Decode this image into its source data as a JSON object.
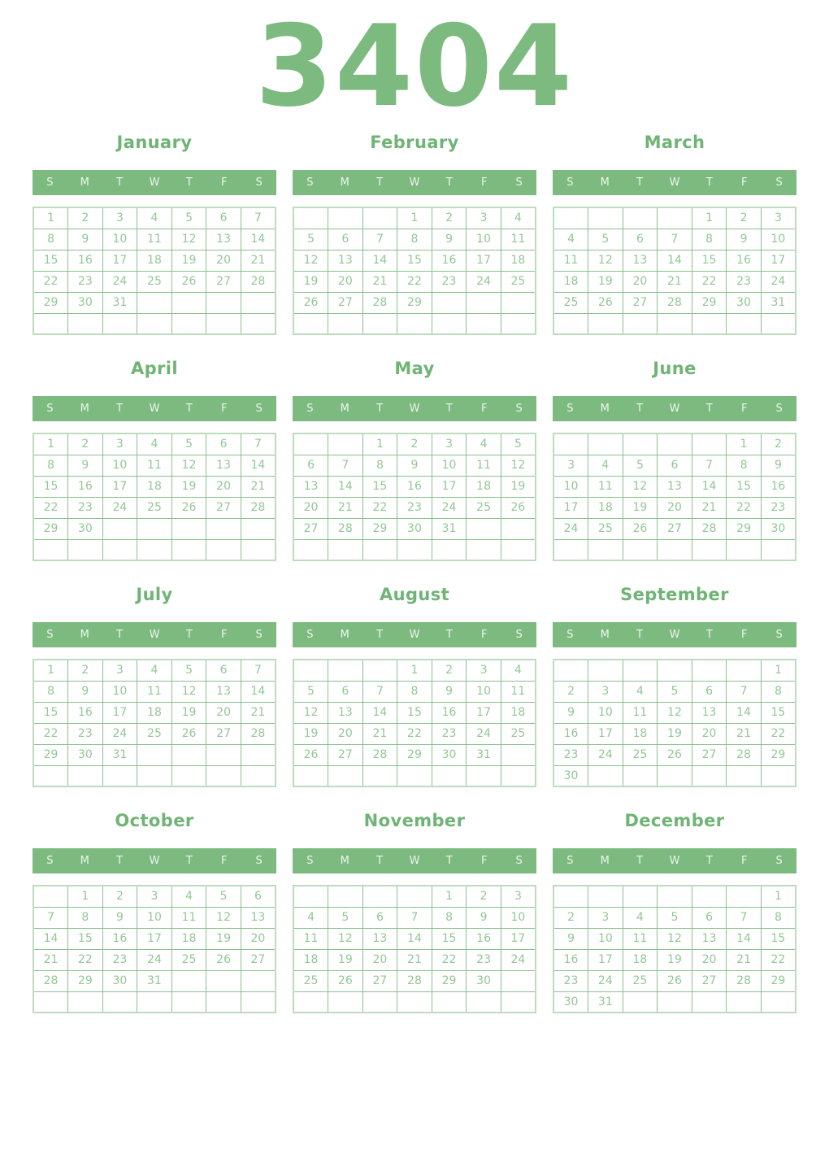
{
  "year": "3404",
  "weekdays": [
    "S",
    "M",
    "T",
    "W",
    "T",
    "F",
    "S"
  ],
  "colors": {
    "accent_green": "#7cba80",
    "title_green": "#6fb475",
    "day_text_green": "#93c795",
    "grid_line_green": "#8ac08d",
    "grid_outline_green": "#bcdcbd",
    "weekday_text": "#ecf6ec",
    "background": "#ffffff"
  },
  "months": [
    {
      "name": "January",
      "weeks": [
        [
          "1",
          "2",
          "3",
          "4",
          "5",
          "6",
          "7"
        ],
        [
          "8",
          "9",
          "10",
          "11",
          "12",
          "13",
          "14"
        ],
        [
          "15",
          "16",
          "17",
          "18",
          "19",
          "20",
          "21"
        ],
        [
          "22",
          "23",
          "24",
          "25",
          "26",
          "27",
          "28"
        ],
        [
          "29",
          "30",
          "31",
          "",
          "",
          "",
          ""
        ],
        [
          "",
          "",
          "",
          "",
          "",
          "",
          ""
        ]
      ]
    },
    {
      "name": "February",
      "weeks": [
        [
          "",
          "",
          "",
          "1",
          "2",
          "3",
          "4"
        ],
        [
          "5",
          "6",
          "7",
          "8",
          "9",
          "10",
          "11"
        ],
        [
          "12",
          "13",
          "14",
          "15",
          "16",
          "17",
          "18"
        ],
        [
          "19",
          "20",
          "21",
          "22",
          "23",
          "24",
          "25"
        ],
        [
          "26",
          "27",
          "28",
          "29",
          "",
          "",
          ""
        ],
        [
          "",
          "",
          "",
          "",
          "",
          "",
          ""
        ]
      ]
    },
    {
      "name": "March",
      "weeks": [
        [
          "",
          "",
          "",
          "",
          "1",
          "2",
          "3"
        ],
        [
          "4",
          "5",
          "6",
          "7",
          "8",
          "9",
          "10"
        ],
        [
          "11",
          "12",
          "13",
          "14",
          "15",
          "16",
          "17"
        ],
        [
          "18",
          "19",
          "20",
          "21",
          "22",
          "23",
          "24"
        ],
        [
          "25",
          "26",
          "27",
          "28",
          "29",
          "30",
          "31"
        ],
        [
          "",
          "",
          "",
          "",
          "",
          "",
          ""
        ]
      ]
    },
    {
      "name": "April",
      "weeks": [
        [
          "1",
          "2",
          "3",
          "4",
          "5",
          "6",
          "7"
        ],
        [
          "8",
          "9",
          "10",
          "11",
          "12",
          "13",
          "14"
        ],
        [
          "15",
          "16",
          "17",
          "18",
          "19",
          "20",
          "21"
        ],
        [
          "22",
          "23",
          "24",
          "25",
          "26",
          "27",
          "28"
        ],
        [
          "29",
          "30",
          "",
          "",
          "",
          "",
          ""
        ],
        [
          "",
          "",
          "",
          "",
          "",
          "",
          ""
        ]
      ]
    },
    {
      "name": "May",
      "weeks": [
        [
          "",
          "",
          "1",
          "2",
          "3",
          "4",
          "5"
        ],
        [
          "6",
          "7",
          "8",
          "9",
          "10",
          "11",
          "12"
        ],
        [
          "13",
          "14",
          "15",
          "16",
          "17",
          "18",
          "19"
        ],
        [
          "20",
          "21",
          "22",
          "23",
          "24",
          "25",
          "26"
        ],
        [
          "27",
          "28",
          "29",
          "30",
          "31",
          "",
          ""
        ],
        [
          "",
          "",
          "",
          "",
          "",
          "",
          ""
        ]
      ]
    },
    {
      "name": "June",
      "weeks": [
        [
          "",
          "",
          "",
          "",
          "",
          "1",
          "2"
        ],
        [
          "3",
          "4",
          "5",
          "6",
          "7",
          "8",
          "9"
        ],
        [
          "10",
          "11",
          "12",
          "13",
          "14",
          "15",
          "16"
        ],
        [
          "17",
          "18",
          "19",
          "20",
          "21",
          "22",
          "23"
        ],
        [
          "24",
          "25",
          "26",
          "27",
          "28",
          "29",
          "30"
        ],
        [
          "",
          "",
          "",
          "",
          "",
          "",
          ""
        ]
      ]
    },
    {
      "name": "July",
      "weeks": [
        [
          "1",
          "2",
          "3",
          "4",
          "5",
          "6",
          "7"
        ],
        [
          "8",
          "9",
          "10",
          "11",
          "12",
          "13",
          "14"
        ],
        [
          "15",
          "16",
          "17",
          "18",
          "19",
          "20",
          "21"
        ],
        [
          "22",
          "23",
          "24",
          "25",
          "26",
          "27",
          "28"
        ],
        [
          "29",
          "30",
          "31",
          "",
          "",
          "",
          ""
        ],
        [
          "",
          "",
          "",
          "",
          "",
          "",
          ""
        ]
      ]
    },
    {
      "name": "August",
      "weeks": [
        [
          "",
          "",
          "",
          "1",
          "2",
          "3",
          "4"
        ],
        [
          "5",
          "6",
          "7",
          "8",
          "9",
          "10",
          "11"
        ],
        [
          "12",
          "13",
          "14",
          "15",
          "16",
          "17",
          "18"
        ],
        [
          "19",
          "20",
          "21",
          "22",
          "23",
          "24",
          "25"
        ],
        [
          "26",
          "27",
          "28",
          "29",
          "30",
          "31",
          ""
        ],
        [
          "",
          "",
          "",
          "",
          "",
          "",
          ""
        ]
      ]
    },
    {
      "name": "September",
      "weeks": [
        [
          "",
          "",
          "",
          "",
          "",
          "",
          "1"
        ],
        [
          "2",
          "3",
          "4",
          "5",
          "6",
          "7",
          "8"
        ],
        [
          "9",
          "10",
          "11",
          "12",
          "13",
          "14",
          "15"
        ],
        [
          "16",
          "17",
          "18",
          "19",
          "20",
          "21",
          "22"
        ],
        [
          "23",
          "24",
          "25",
          "26",
          "27",
          "28",
          "29"
        ],
        [
          "30",
          "",
          "",
          "",
          "",
          "",
          ""
        ]
      ]
    },
    {
      "name": "October",
      "weeks": [
        [
          "",
          "1",
          "2",
          "3",
          "4",
          "5",
          "6"
        ],
        [
          "7",
          "8",
          "9",
          "10",
          "11",
          "12",
          "13"
        ],
        [
          "14",
          "15",
          "16",
          "17",
          "18",
          "19",
          "20"
        ],
        [
          "21",
          "22",
          "23",
          "24",
          "25",
          "26",
          "27"
        ],
        [
          "28",
          "29",
          "30",
          "31",
          "",
          "",
          ""
        ],
        [
          "",
          "",
          "",
          "",
          "",
          "",
          ""
        ]
      ]
    },
    {
      "name": "November",
      "weeks": [
        [
          "",
          "",
          "",
          "",
          "1",
          "2",
          "3"
        ],
        [
          "4",
          "5",
          "6",
          "7",
          "8",
          "9",
          "10"
        ],
        [
          "11",
          "12",
          "13",
          "14",
          "15",
          "16",
          "17"
        ],
        [
          "18",
          "19",
          "20",
          "21",
          "22",
          "23",
          "24"
        ],
        [
          "25",
          "26",
          "27",
          "28",
          "29",
          "30",
          ""
        ],
        [
          "",
          "",
          "",
          "",
          "",
          "",
          ""
        ]
      ]
    },
    {
      "name": "December",
      "weeks": [
        [
          "",
          "",
          "",
          "",
          "",
          "",
          "1"
        ],
        [
          "2",
          "3",
          "4",
          "5",
          "6",
          "7",
          "8"
        ],
        [
          "9",
          "10",
          "11",
          "12",
          "13",
          "14",
          "15"
        ],
        [
          "16",
          "17",
          "18",
          "19",
          "20",
          "21",
          "22"
        ],
        [
          "23",
          "24",
          "25",
          "26",
          "27",
          "28",
          "29"
        ],
        [
          "30",
          "31",
          "",
          "",
          "",
          "",
          ""
        ]
      ]
    }
  ]
}
